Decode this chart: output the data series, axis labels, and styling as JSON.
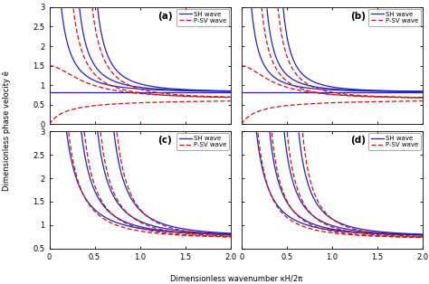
{
  "panels": [
    "(a)",
    "(b)",
    "(c)",
    "(d)"
  ],
  "xlim": [
    0,
    2.0
  ],
  "ylim_ab": [
    0,
    3.0
  ],
  "ylim_cd": [
    0.5,
    3.0
  ],
  "xticks": [
    0,
    0.5,
    1.0,
    1.5,
    2.0
  ],
  "yticks_ab": [
    0.0,
    0.5,
    1.0,
    1.5,
    2.0,
    2.5,
    3.0
  ],
  "yticks_cd": [
    0.5,
    1.0,
    1.5,
    2.0,
    2.5,
    3.0
  ],
  "xlabel": "Dimensionless wavenumber κH/2π",
  "ylabel": "Dimensionless phase velocity ē",
  "sh_color": "#2222bb",
  "psv_color": "#cc1111",
  "sh_label": "SH wave",
  "psv_label": "P-SV wave",
  "sh_flat_a": 0.82,
  "psv_rayleigh_a": 0.65,
  "sh_flat_b": 0.82,
  "psv_rayleigh_b": 0.65
}
